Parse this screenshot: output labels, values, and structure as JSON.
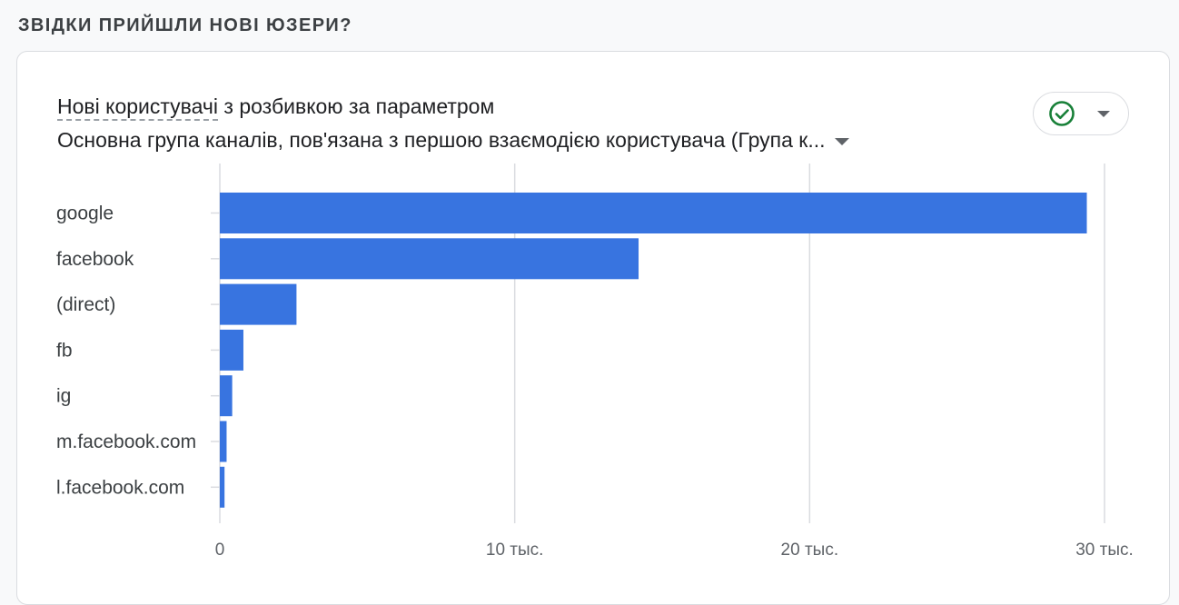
{
  "section": {
    "title": "ЗВІДКИ ПРИЙШЛИ НОВІ ЮЗЕРИ?"
  },
  "card": {
    "metric": "Нові користувачі",
    "metric_suffix": " з розбивкою за параметром",
    "dimension": "Основна група каналів, пов'язана з першою взаємодією користувача (Група к...",
    "status_icon": "check-circle-icon",
    "status_color": "#188038"
  },
  "chart_data": {
    "type": "bar",
    "orientation": "horizontal",
    "categories": [
      "google",
      "facebook",
      "(direct)",
      "fb",
      "ig",
      "m.facebook.com",
      "l.facebook.com"
    ],
    "values": [
      29400,
      14200,
      2600,
      800,
      420,
      230,
      160
    ],
    "xlim": [
      0,
      30000
    ],
    "xticks": [
      {
        "value": 0,
        "label": "0"
      },
      {
        "value": 10000,
        "label": "10 тыс."
      },
      {
        "value": 20000,
        "label": "20 тыс."
      },
      {
        "value": 30000,
        "label": "30 тыс."
      }
    ],
    "grid": true,
    "bar_color": "#3874e0",
    "title": "",
    "xlabel": "",
    "ylabel": ""
  }
}
